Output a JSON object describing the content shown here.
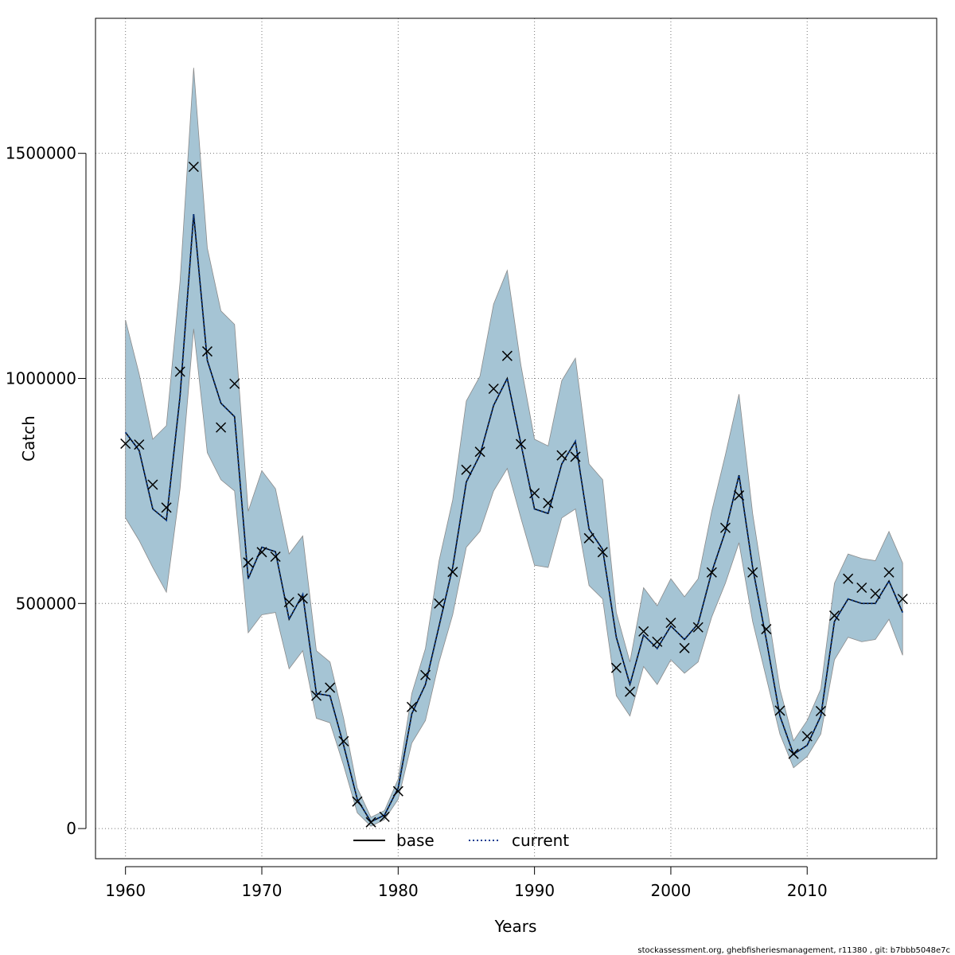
{
  "chart_data": {
    "type": "line",
    "xlabel": "Years",
    "ylabel": "Catch",
    "xlim": [
      1957.8,
      2019.5
    ],
    "ylim": [
      -67000,
      1800000
    ],
    "grid": true,
    "legend_position": "bottom-center",
    "x_ticks": [
      1960,
      1970,
      1980,
      1990,
      2000,
      2010
    ],
    "x_tick_labels": [
      "1960",
      "1970",
      "1980",
      "1990",
      "2000",
      "2010"
    ],
    "y_ticks": [
      0,
      500000,
      1000000,
      1500000
    ],
    "y_tick_labels": [
      "0",
      "500000",
      "1000000",
      "1500000"
    ],
    "legend": [
      {
        "label": "base",
        "style": "solid",
        "color": "#000000"
      },
      {
        "label": "current",
        "style": "dotted",
        "color": "#0b3d91"
      }
    ],
    "years": [
      1960,
      1961,
      1962,
      1963,
      1964,
      1965,
      1966,
      1967,
      1968,
      1969,
      1970,
      1971,
      1972,
      1973,
      1974,
      1975,
      1976,
      1977,
      1978,
      1979,
      1980,
      1981,
      1982,
      1983,
      1984,
      1985,
      1986,
      1987,
      1988,
      1989,
      1990,
      1991,
      1992,
      1993,
      1994,
      1995,
      1996,
      1997,
      1998,
      1999,
      2000,
      2001,
      2002,
      2003,
      2004,
      2005,
      2006,
      2007,
      2008,
      2009,
      2010,
      2011,
      2012,
      2013,
      2014,
      2015,
      2016,
      2017
    ],
    "observed": [
      855000,
      853000,
      764000,
      713000,
      1015000,
      1470000,
      1060000,
      891000,
      988000,
      591000,
      614000,
      604000,
      503000,
      511000,
      295000,
      313000,
      194000,
      60000,
      14000,
      26000,
      83000,
      270000,
      341000,
      500000,
      570000,
      797000,
      837000,
      977000,
      1050000,
      854000,
      745000,
      723000,
      829000,
      826000,
      645000,
      614000,
      357000,
      304000,
      438000,
      415000,
      457000,
      401000,
      447000,
      569000,
      668000,
      740000,
      569000,
      443000,
      262000,
      166000,
      205000,
      261000,
      473000,
      555000,
      535000,
      522000,
      569000,
      510000
    ],
    "series": [
      {
        "name": "base",
        "values": [
          880000,
          840000,
          710000,
          685000,
          960000,
          1365000,
          1040000,
          945000,
          915000,
          555000,
          625000,
          615000,
          465000,
          520000,
          300000,
          295000,
          185000,
          65000,
          15000,
          30000,
          90000,
          255000,
          320000,
          450000,
          580000,
          770000,
          830000,
          940000,
          1000000,
          855000,
          710000,
          700000,
          810000,
          860000,
          665000,
          620000,
          425000,
          320000,
          430000,
          400000,
          450000,
          420000,
          455000,
          570000,
          660000,
          785000,
          580000,
          420000,
          250000,
          165000,
          185000,
          250000,
          460000,
          510000,
          500000,
          500000,
          550000,
          480000
        ]
      },
      {
        "name": "current",
        "values": [
          880000,
          840000,
          710000,
          685000,
          960000,
          1365000,
          1040000,
          945000,
          915000,
          555000,
          625000,
          615000,
          465000,
          520000,
          300000,
          295000,
          185000,
          65000,
          15000,
          30000,
          90000,
          255000,
          320000,
          450000,
          580000,
          770000,
          830000,
          940000,
          1000000,
          855000,
          710000,
          700000,
          810000,
          860000,
          665000,
          620000,
          425000,
          320000,
          430000,
          400000,
          450000,
          420000,
          455000,
          570000,
          660000,
          785000,
          580000,
          420000,
          250000,
          165000,
          185000,
          250000,
          460000,
          510000,
          500000,
          500000,
          550000,
          480000
        ]
      }
    ],
    "band_upper": [
      1130000,
      1010000,
      865000,
      895000,
      1215000,
      1690000,
      1290000,
      1150000,
      1120000,
      705000,
      795000,
      755000,
      610000,
      650000,
      395000,
      370000,
      245000,
      90000,
      25000,
      40000,
      110000,
      300000,
      400000,
      595000,
      730000,
      950000,
      1005000,
      1165000,
      1240000,
      1030000,
      865000,
      850000,
      995000,
      1045000,
      810000,
      775000,
      480000,
      370000,
      535000,
      495000,
      555000,
      515000,
      555000,
      705000,
      830000,
      965000,
      700000,
      505000,
      310000,
      195000,
      240000,
      310000,
      545000,
      610000,
      600000,
      595000,
      660000,
      590000
    ],
    "band_lower": [
      690000,
      640000,
      580000,
      525000,
      755000,
      1110000,
      835000,
      775000,
      750000,
      435000,
      475000,
      480000,
      355000,
      395000,
      245000,
      235000,
      140000,
      35000,
      5000,
      20000,
      65000,
      190000,
      240000,
      370000,
      475000,
      625000,
      660000,
      750000,
      800000,
      690000,
      585000,
      580000,
      690000,
      710000,
      540000,
      510000,
      295000,
      250000,
      360000,
      320000,
      375000,
      345000,
      370000,
      470000,
      545000,
      635000,
      460000,
      335000,
      210000,
      135000,
      160000,
      210000,
      375000,
      425000,
      415000,
      420000,
      465000,
      385000
    ]
  },
  "footer": "stockassessment.org, ghebfisheriesmanagement, r11380 , git: b7bbb5048e7c"
}
